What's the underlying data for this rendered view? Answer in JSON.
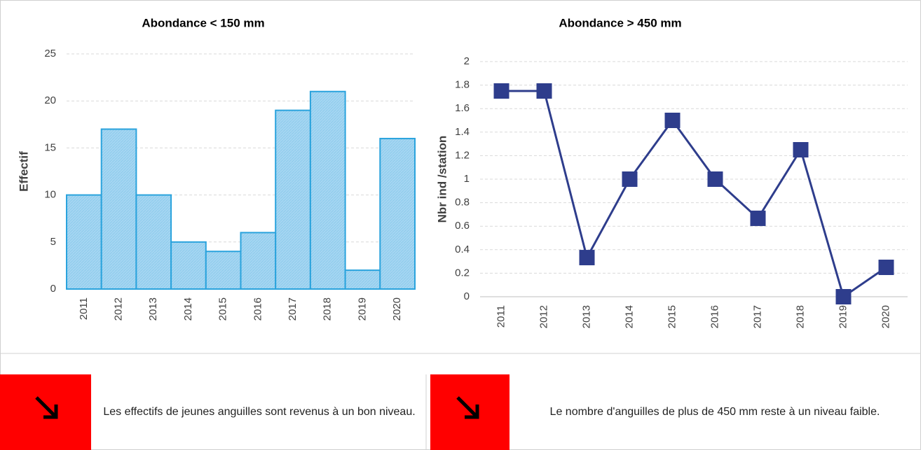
{
  "chart_data": [
    {
      "type": "bar",
      "title": "Abondance < 150 mm",
      "y_label": "Effectif",
      "categories": [
        "2011",
        "2012",
        "2013",
        "2014",
        "2015",
        "2016",
        "2017",
        "2018",
        "2019",
        "2020"
      ],
      "values": [
        10,
        17,
        10,
        5,
        4,
        6,
        19,
        21,
        2,
        16
      ],
      "color": "#a6d6f2",
      "edge_color": "#2aa3dd",
      "ylim": [
        0,
        25
      ],
      "yticks": [
        0,
        5,
        10,
        15,
        20,
        25
      ],
      "grid": true
    },
    {
      "type": "line",
      "title": "Abondance > 450 mm",
      "y_label": "Nbr ind /station",
      "categories": [
        "2011",
        "2012",
        "2013",
        "2014",
        "2015",
        "2016",
        "2017",
        "2018",
        "2019",
        "2020"
      ],
      "values": [
        1.75,
        1.75,
        0.333,
        1,
        1.5,
        1,
        0.667,
        1.25,
        0,
        0.25
      ],
      "color": "#2e3d8c",
      "ylim": [
        0,
        2
      ],
      "yticks": [
        0,
        0.2,
        0.4,
        0.6,
        0.8,
        1,
        1.2,
        1.4,
        1.6,
        1.8,
        2
      ],
      "grid": true
    }
  ],
  "captions": [
    "Les effectifs de jeunes anguilles sont revenus à un bon niveau.",
    "Le nombre d'anguilles de plus de 450 mm reste à un niveau faible."
  ]
}
